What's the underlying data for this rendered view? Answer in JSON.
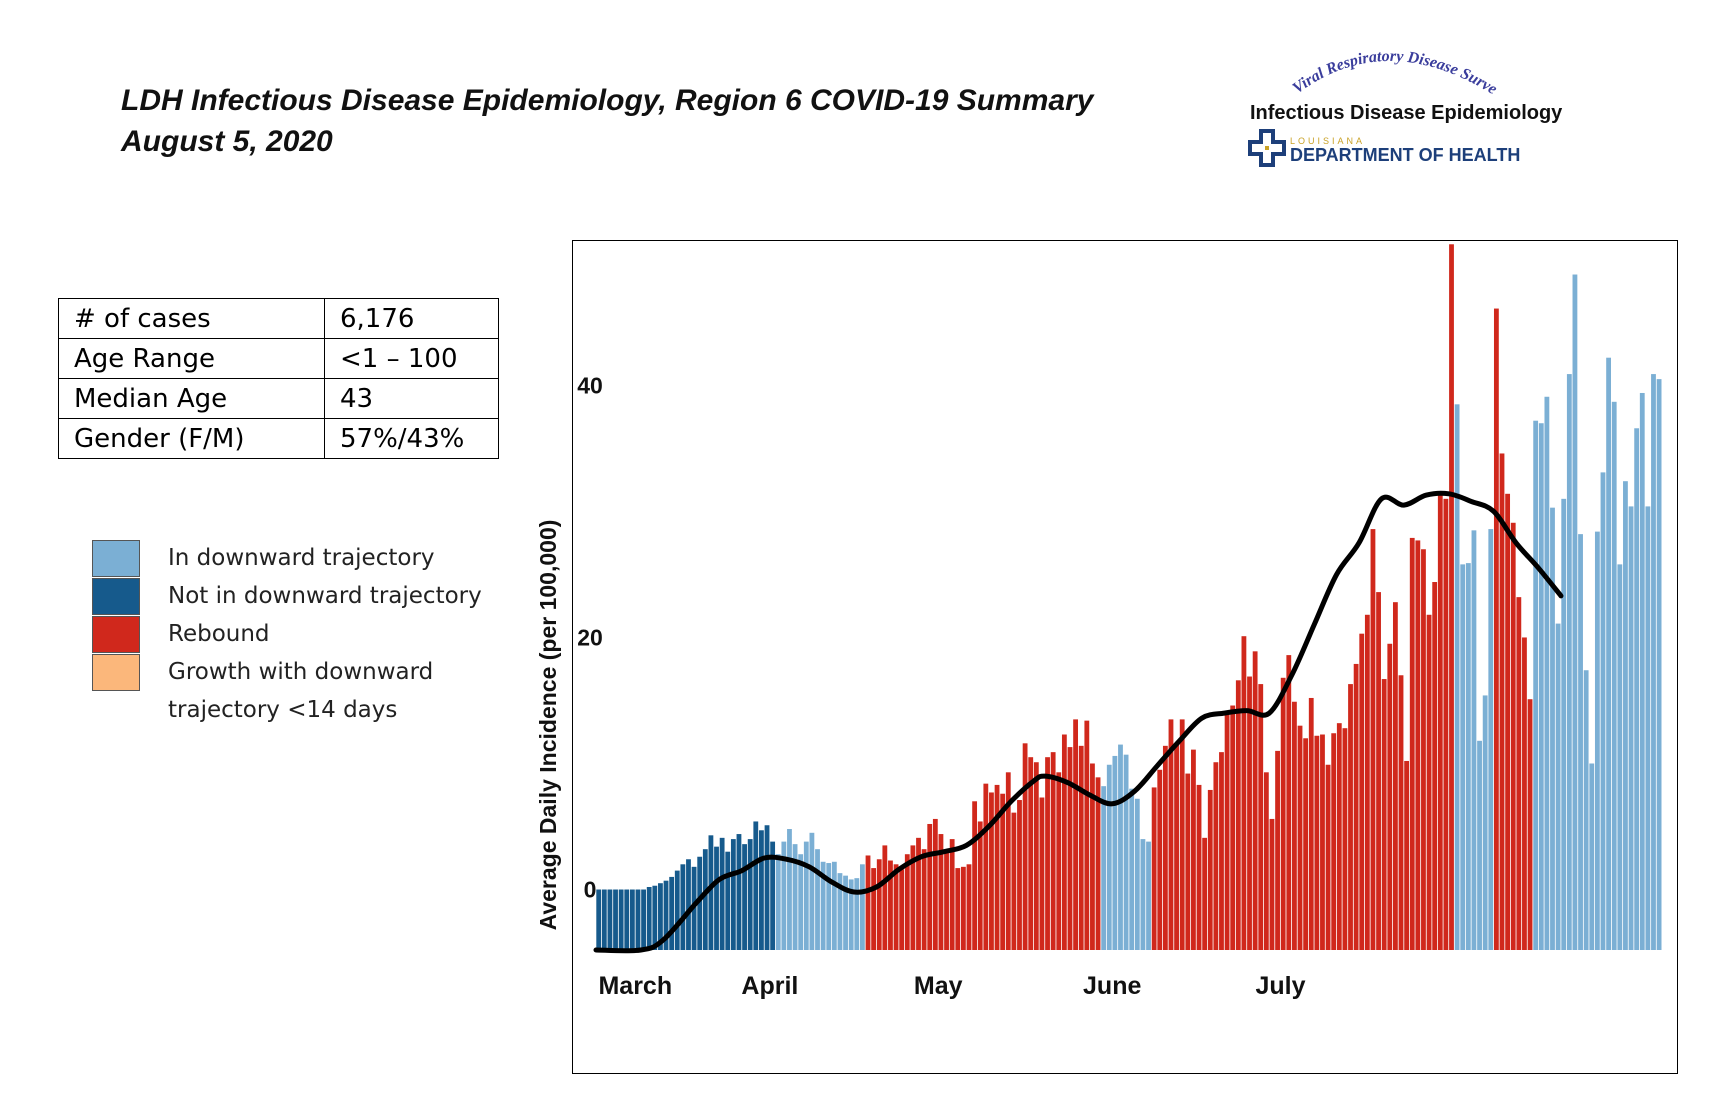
{
  "header": {
    "title_line1": "LDH Infectious Disease Epidemiology, Region 6 COVID-19 Summary",
    "title_line2": "August 5, 2020"
  },
  "logo": {
    "arc_text": "Viral Respiratory Disease Surveillance Program",
    "dept_line": "Infectious Disease Epidemiology",
    "state_line": "LOUISIANA",
    "org_line": "DEPARTMENT OF HEALTH"
  },
  "stats": [
    {
      "label": "# of cases",
      "value": "6,176"
    },
    {
      "label": "Age Range",
      "value": "<1 – 100"
    },
    {
      "label": "Median Age",
      "value": "43"
    },
    {
      "label": "Gender (F/M)",
      "value": "57%/43%"
    }
  ],
  "legend": [
    {
      "label": "In downward trajectory",
      "color": "#7BAFD4"
    },
    {
      "label": "Not in downward trajectory",
      "color": "#165A8C"
    },
    {
      "label": "Rebound",
      "color": "#D0281C"
    },
    {
      "label": "Growth with downward trajectory <14 days",
      "color": "#FBB77B"
    }
  ],
  "chart_data": {
    "type": "bar",
    "title": "",
    "xlabel": "",
    "ylabel": "Average Daily Incidence (per 100,000)",
    "ylim": [
      -4.8,
      49
    ],
    "yticks": [
      0,
      20,
      40
    ],
    "month_labels": [
      "March",
      "April",
      "May",
      "June",
      "July"
    ],
    "month_start_index": [
      7,
      31,
      61,
      92,
      122
    ],
    "category_colors": {
      "down": "#7BAFD4",
      "notdown": "#165A8C",
      "rebound": "#D0281C",
      "growth": "#FBB77B"
    },
    "values": [
      0,
      0,
      0,
      0,
      0,
      0,
      0,
      0,
      0,
      0.2,
      0.3,
      0.5,
      0.7,
      1.0,
      1.5,
      2.0,
      2.4,
      1.8,
      2.6,
      3.2,
      4.3,
      3.4,
      4.1,
      3.0,
      4.0,
      4.4,
      3.6,
      4.0,
      5.4,
      4.7,
      5.1,
      3.8,
      2.8,
      3.8,
      4.8,
      3.6,
      2.8,
      3.8,
      4.5,
      3.2,
      2.2,
      2.1,
      2.2,
      1.3,
      1.1,
      0.8,
      0.9,
      2.0,
      2.7,
      1.7,
      2.4,
      3.5,
      2.3,
      2.0,
      1.6,
      2.8,
      3.5,
      4.1,
      3.2,
      5.2,
      5.6,
      4.4,
      3.1,
      4.0,
      1.7,
      1.8,
      2.0,
      7.0,
      5.4,
      8.4,
      7.7,
      8.3,
      7.6,
      9.3,
      6.1,
      7.1,
      11.6,
      10.5,
      10.1,
      7.3,
      10.5,
      10.9,
      9.3,
      12.3,
      11.3,
      13.5,
      11.4,
      13.4,
      10.0,
      8.9,
      8.2,
      9.9,
      10.6,
      11.5,
      10.7,
      8.0,
      7.2,
      4.0,
      3.8,
      8.1,
      9.5,
      11.4,
      13.5,
      11.5,
      13.5,
      9.2,
      11.1,
      8.3,
      4.1,
      7.9,
      10.1,
      10.9,
      13.9,
      14.6,
      16.6,
      20.1,
      16.9,
      18.9,
      16.3,
      9.3,
      5.6,
      11.0,
      16.8,
      18.6,
      14.9,
      13.0,
      12.0,
      15.2,
      12.2,
      12.3,
      9.9,
      12.4,
      13.2,
      12.8,
      16.3,
      17.9,
      20.3,
      21.8,
      28.6,
      23.6,
      16.7,
      19.5,
      22.8,
      17.0,
      10.2,
      27.9,
      27.7,
      27.0,
      21.8,
      24.4,
      31.6,
      31.0,
      51.2,
      38.5,
      25.8,
      25.9,
      28.5,
      11.8,
      15.4,
      28.6,
      46.1,
      34.6,
      31.4,
      29.1,
      23.2,
      20.0,
      15.1,
      37.2,
      37.0,
      39.1,
      30.3,
      21.1,
      31.0,
      40.9,
      48.8,
      28.2,
      17.4,
      10.0,
      28.4,
      33.1,
      42.2,
      38.7,
      25.8,
      32.4,
      30.4,
      36.6,
      39.4,
      30.4,
      40.9,
      40.5
    ],
    "colors": [
      "notdown",
      "notdown",
      "notdown",
      "notdown",
      "notdown",
      "notdown",
      "notdown",
      "notdown",
      "notdown",
      "notdown",
      "notdown",
      "notdown",
      "notdown",
      "notdown",
      "notdown",
      "notdown",
      "notdown",
      "notdown",
      "notdown",
      "notdown",
      "notdown",
      "notdown",
      "notdown",
      "notdown",
      "notdown",
      "notdown",
      "notdown",
      "notdown",
      "notdown",
      "notdown",
      "notdown",
      "notdown",
      "down",
      "down",
      "down",
      "down",
      "down",
      "down",
      "down",
      "down",
      "down",
      "down",
      "down",
      "down",
      "down",
      "down",
      "down",
      "down",
      "rebound",
      "rebound",
      "rebound",
      "rebound",
      "rebound",
      "rebound",
      "rebound",
      "rebound",
      "rebound",
      "rebound",
      "rebound",
      "rebound",
      "rebound",
      "rebound",
      "rebound",
      "rebound",
      "rebound",
      "rebound",
      "rebound",
      "rebound",
      "rebound",
      "rebound",
      "rebound",
      "rebound",
      "rebound",
      "rebound",
      "rebound",
      "rebound",
      "rebound",
      "rebound",
      "rebound",
      "rebound",
      "rebound",
      "rebound",
      "rebound",
      "rebound",
      "rebound",
      "rebound",
      "rebound",
      "rebound",
      "rebound",
      "rebound",
      "down",
      "down",
      "down",
      "down",
      "down",
      "down",
      "down",
      "down",
      "down",
      "rebound",
      "rebound",
      "rebound",
      "rebound",
      "rebound",
      "rebound",
      "rebound",
      "rebound",
      "rebound",
      "rebound",
      "rebound",
      "rebound",
      "rebound",
      "rebound",
      "rebound",
      "rebound",
      "rebound",
      "rebound",
      "rebound",
      "rebound",
      "rebound",
      "rebound",
      "rebound",
      "rebound",
      "rebound",
      "rebound",
      "rebound",
      "rebound",
      "rebound",
      "rebound",
      "rebound",
      "rebound",
      "rebound",
      "rebound",
      "rebound",
      "rebound",
      "rebound",
      "rebound",
      "rebound",
      "rebound",
      "rebound",
      "rebound",
      "rebound",
      "rebound",
      "rebound",
      "rebound",
      "rebound",
      "rebound",
      "rebound",
      "rebound",
      "rebound",
      "rebound",
      "rebound",
      "rebound",
      "down",
      "down",
      "down",
      "down",
      "down",
      "down",
      "down",
      "rebound",
      "rebound",
      "rebound",
      "rebound",
      "rebound",
      "rebound",
      "rebound",
      "down",
      "down",
      "down",
      "down",
      "down",
      "down",
      "down",
      "down",
      "down",
      "down",
      "down",
      "down",
      "down",
      "down",
      "down",
      "down",
      "down",
      "down",
      "down",
      "down",
      "down",
      "down",
      "down"
    ],
    "trend_line": [
      [
        0,
        -4.8
      ],
      [
        8,
        -4.8
      ],
      [
        12,
        -4
      ],
      [
        18,
        -1
      ],
      [
        22,
        0.8
      ],
      [
        26,
        1.5
      ],
      [
        30,
        2.5
      ],
      [
        34,
        2.4
      ],
      [
        38,
        1.8
      ],
      [
        42,
        0.6
      ],
      [
        46,
        -0.2
      ],
      [
        50,
        0.2
      ],
      [
        54,
        1.6
      ],
      [
        58,
        2.6
      ],
      [
        62,
        3.0
      ],
      [
        66,
        3.5
      ],
      [
        70,
        5.0
      ],
      [
        74,
        7.0
      ],
      [
        78,
        8.6
      ],
      [
        80,
        9.0
      ],
      [
        84,
        8.5
      ],
      [
        88,
        7.5
      ],
      [
        92,
        6.8
      ],
      [
        96,
        7.8
      ],
      [
        100,
        9.8
      ],
      [
        104,
        11.8
      ],
      [
        108,
        13.6
      ],
      [
        112,
        14.0
      ],
      [
        116,
        14.2
      ],
      [
        120,
        14.0
      ],
      [
        124,
        17.0
      ],
      [
        128,
        21.0
      ],
      [
        132,
        25.0
      ],
      [
        136,
        27.5
      ],
      [
        140,
        31.0
      ],
      [
        144,
        30.5
      ],
      [
        148,
        31.3
      ],
      [
        152,
        31.4
      ],
      [
        156,
        30.8
      ],
      [
        160,
        30.0
      ],
      [
        164,
        27.5
      ],
      [
        168,
        25.5
      ],
      [
        172,
        23.3
      ]
    ]
  }
}
